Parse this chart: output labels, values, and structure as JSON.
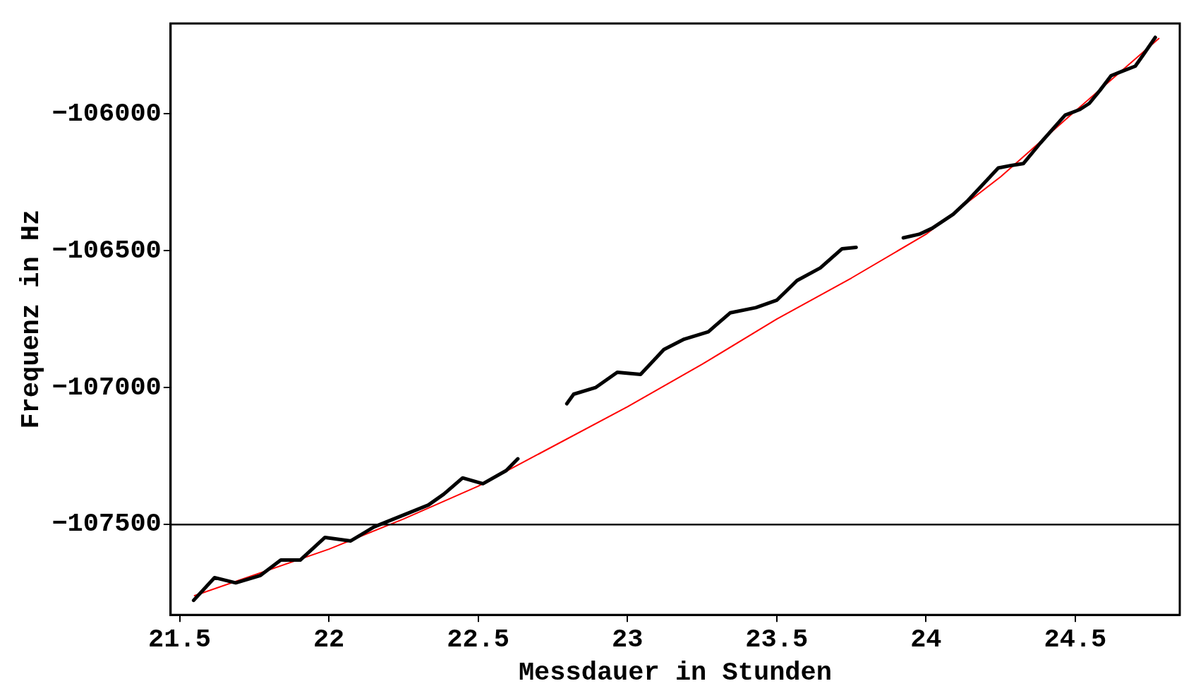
{
  "chart_data": {
    "type": "line",
    "xlabel": "Messdauer in Stunden",
    "ylabel": "Frequenz in Hz",
    "xlim": [
      21.47,
      24.85
    ],
    "ylim": [
      -107830,
      -105670
    ],
    "xticks": [
      {
        "value": 21.5,
        "label": "21.5"
      },
      22,
      {
        "value": 22.5,
        "label": "22.5"
      },
      23,
      {
        "value": 23.5,
        "label": "23.5"
      },
      24,
      {
        "value": 24.5,
        "label": "24.5"
      }
    ],
    "yticks": [
      -107500,
      -107000,
      -106500,
      -106000
    ],
    "grid": false,
    "legend": false,
    "marker": "none",
    "ref_lines": [
      {
        "axis": "y",
        "value": -107500,
        "color": "#000000"
      }
    ],
    "series": [
      {
        "color": "#000000",
        "line_style": "solid",
        "x": [
          21.547,
          21.617,
          21.688,
          21.771,
          21.839,
          21.904,
          21.987,
          22.073,
          22.151,
          22.242,
          22.333,
          22.385,
          22.448,
          22.516,
          22.594,
          22.633,
          22.72,
          22.797,
          22.82,
          22.893,
          22.966,
          23.044,
          23.122,
          23.19,
          23.271,
          23.344,
          23.43,
          23.5,
          23.568,
          23.646,
          23.719,
          23.766,
          23.85,
          23.924,
          23.977,
          24.021,
          24.091,
          24.141,
          24.242,
          24.289,
          24.326,
          24.383,
          24.466,
          24.516,
          24.547,
          24.583,
          24.62,
          24.656,
          24.701,
          24.729,
          24.768
        ],
        "values": [
          -107777,
          -107694,
          -107713,
          -107686,
          -107630,
          -107630,
          -107547,
          -107560,
          -107509,
          -107469,
          -107429,
          -107389,
          -107330,
          -107351,
          -107303,
          -107260,
          null,
          -107059,
          -107024,
          -107000,
          -106944,
          -106952,
          -106861,
          -106823,
          -106796,
          -106727,
          -106708,
          -106681,
          -106609,
          -106563,
          -106493,
          -106488,
          null,
          -106453,
          -106440,
          -106418,
          -106367,
          -106316,
          -106198,
          -106188,
          -106182,
          -106107,
          -106005,
          -105984,
          -105962,
          -105914,
          -105861,
          -105845,
          -105826,
          -105783,
          -105721
        ]
      },
      {
        "color": "#ff0000",
        "line_style": "solid",
        "x": [
          21.55,
          22.0,
          22.25,
          22.5,
          23.0,
          23.25,
          23.5,
          23.75,
          24.0,
          24.25,
          24.5,
          24.78
        ],
        "values": [
          -107760,
          -107590,
          -107480,
          -107360,
          -107070,
          -106915,
          -106750,
          -106600,
          -106440,
          -106230,
          -105990,
          -105725
        ]
      }
    ]
  }
}
